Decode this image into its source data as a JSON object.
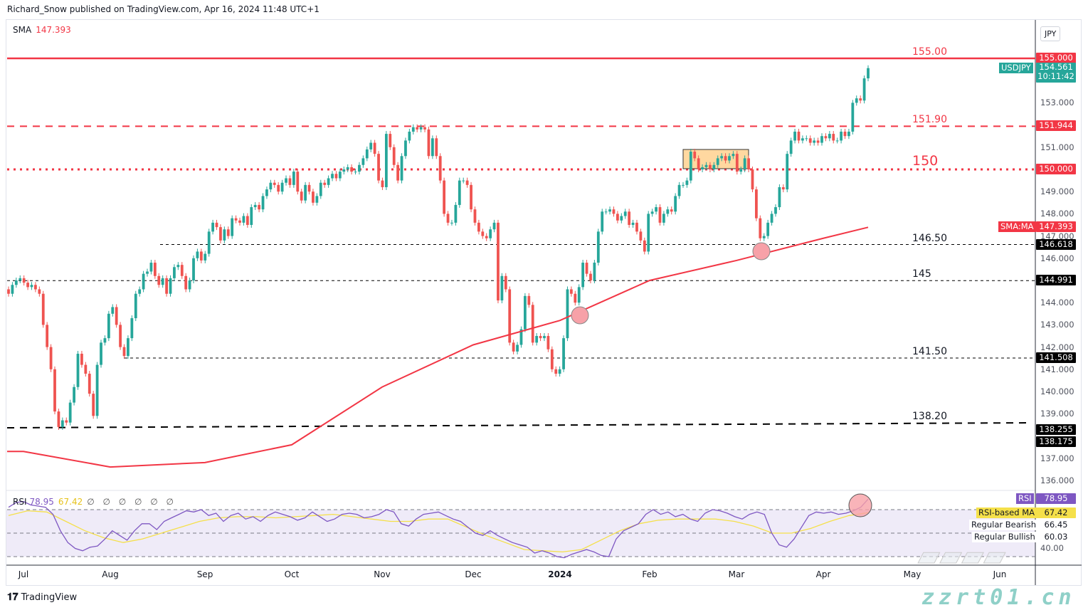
{
  "header": {
    "attribution": "Richard_Snow published on TradingView.com, Apr 16, 2024 11:48 UTC+1"
  },
  "legend": {
    "label": "SMA",
    "value": "147.393"
  },
  "currency": "JPY",
  "symbol": "USDJPY",
  "last_price": "154.561",
  "countdown": "10:11:42",
  "colors": {
    "up": "#26a69a",
    "down": "#ef5350",
    "sma": "#f23645",
    "rsi": "#7e57c2",
    "rsi_ma": "#f5e04a",
    "level": "#f23645"
  },
  "price_ticks": [
    "153.000",
    "151.000",
    "149.000",
    "148.000",
    "147.000",
    "146.000",
    "144.000",
    "143.000",
    "142.000",
    "141.000",
    "140.000",
    "139.000",
    "137.000",
    "136.000"
  ],
  "badges": [
    {
      "text": "155.000",
      "price": 155.0,
      "color": "#f23645"
    },
    {
      "text": "151.944",
      "price": 151.944,
      "color": "#f23645"
    },
    {
      "text": "150.000",
      "price": 150.0,
      "color": "#f23645"
    },
    {
      "text": "147.393",
      "price": 147.393,
      "color": "#f23645",
      "tag": "SMA:MA"
    },
    {
      "text": "146.618",
      "price": 146.618,
      "color": "#000000"
    },
    {
      "text": "144.991",
      "price": 144.991,
      "color": "#000000"
    },
    {
      "text": "141.508",
      "price": 141.508,
      "color": "#000000"
    },
    {
      "text": "138.255",
      "price": 138.255,
      "color": "#000000"
    },
    {
      "text": "138.175",
      "price": 138.175,
      "color": "#000000"
    }
  ],
  "levels": [
    {
      "label": "155.00",
      "price": 155.0,
      "style": "solid",
      "color": "#f23645"
    },
    {
      "label": "151.90",
      "price": 151.944,
      "style": "dashed",
      "color": "#f23645"
    },
    {
      "label": "150",
      "price": 150.0,
      "style": "dotted",
      "color": "#f23645"
    },
    {
      "label": "146.50",
      "price": 146.618,
      "style": "thin-dashed",
      "color": "#000000"
    },
    {
      "label": "145",
      "price": 144.991,
      "style": "thin-dashed",
      "color": "#000000"
    },
    {
      "label": "141.50",
      "price": 141.508,
      "style": "thin-dashed",
      "color": "#000000"
    },
    {
      "label": "138.20",
      "price": 138.2,
      "style": "dashed-trend",
      "color": "#000000"
    }
  ],
  "time_labels": [
    "Jul",
    "Aug",
    "Sep",
    "Oct",
    "Nov",
    "Dec",
    "2024",
    "Feb",
    "Mar",
    "Apr",
    "May",
    "Jun"
  ],
  "rsi": {
    "label": "RSI",
    "value": "78.95",
    "ma_value": "67.42",
    "placeholders": "∅ ∅ ∅ ∅ ∅ ∅",
    "axis": [
      {
        "label": "RSI",
        "value": "78.95"
      },
      {
        "label": "RSI-based MA",
        "value": "67.42"
      },
      {
        "label": "Regular Bearish",
        "value": "66.45"
      },
      {
        "label": "Regular Bullish",
        "value": "60.03"
      }
    ],
    "axis_tick": "40.00",
    "bands": [
      70,
      50,
      30
    ]
  },
  "watermark": {
    "text": "zzrt01.cn"
  },
  "branding": "TradingView",
  "chart_data": {
    "type": "candlestick",
    "symbol": "USDJPY",
    "timeframe": "daily",
    "x_range": [
      "Jul 2023",
      "Apr 16 2024"
    ],
    "ylim": [
      135.5,
      156.0
    ],
    "closes": [
      144.4,
      144.8,
      145.0,
      145.1,
      144.9,
      144.7,
      144.8,
      144.6,
      144.4,
      143.0,
      142.0,
      141.0,
      139.1,
      138.4,
      138.7,
      138.6,
      139.5,
      140.2,
      141.7,
      141.2,
      140.8,
      139.9,
      138.9,
      141.2,
      142.2,
      142.4,
      143.5,
      143.8,
      143.0,
      142.0,
      141.6,
      142.4,
      143.3,
      144.4,
      144.6,
      145.3,
      145.4,
      145.8,
      145.2,
      144.8,
      145.1,
      144.4,
      145.1,
      145.6,
      145.7,
      145.2,
      144.6,
      145.0,
      146.0,
      146.3,
      145.9,
      146.2,
      147.2,
      147.6,
      147.4,
      146.8,
      147.3,
      147.0,
      147.8,
      147.7,
      147.6,
      147.9,
      147.5,
      148.3,
      148.4,
      148.2,
      148.8,
      149.1,
      149.4,
      149.3,
      149.0,
      149.4,
      149.6,
      149.3,
      149.9,
      149.0,
      148.6,
      149.3,
      149.0,
      148.5,
      148.8,
      149.4,
      149.3,
      149.6,
      149.8,
      149.6,
      149.9,
      150.0,
      150.1,
      149.9,
      149.9,
      150.2,
      150.5,
      150.9,
      151.2,
      150.7,
      149.5,
      149.2,
      151.6,
      151.0,
      150.2,
      149.5,
      150.6,
      151.3,
      151.7,
      151.9,
      151.8,
      151.9,
      151.8,
      150.6,
      151.4,
      150.6,
      149.5,
      148.0,
      147.6,
      147.6,
      148.4,
      149.5,
      149.5,
      149.3,
      148.2,
      147.6,
      147.2,
      147.0,
      146.9,
      147.3,
      147.6,
      144.1,
      145.2,
      144.6,
      142.2,
      141.8,
      142.1,
      142.8,
      144.3,
      143.9,
      142.2,
      142.5,
      142.4,
      142.5,
      141.9,
      141.0,
      140.8,
      141.0,
      142.4,
      144.6,
      144.4,
      144.0,
      144.7,
      145.8,
      145.3,
      145.0,
      145.8,
      147.2,
      148.1,
      148.1,
      148.2,
      148.0,
      147.7,
      147.9,
      148.1,
      147.5,
      147.6,
      147.2,
      146.8,
      146.3,
      148.0,
      148.1,
      148.3,
      147.6,
      148.0,
      148.2,
      148.1,
      148.8,
      149.3,
      149.3,
      149.5,
      150.8,
      150.5,
      150.0,
      150.1,
      150.2,
      150.0,
      150.2,
      150.5,
      150.6,
      150.4,
      150.6,
      150.7,
      149.9,
      150.0,
      150.5,
      150.0,
      149.1,
      147.8,
      146.9,
      147.0,
      147.6,
      148.0,
      148.3,
      149.2,
      149.1,
      150.7,
      151.3,
      151.7,
      151.3,
      151.4,
      151.4,
      151.2,
      151.3,
      151.2,
      151.5,
      151.4,
      151.6,
      151.3,
      151.3,
      151.7,
      151.5,
      151.7,
      153.0,
      153.2,
      153.1,
      154.1,
      154.561
    ],
    "sma": {
      "name": "SMA",
      "points": [
        {
          "at": "Jul",
          "value": 137.3
        },
        {
          "at": "Aug",
          "value": 136.6
        },
        {
          "at": "Sep",
          "value": 136.8
        },
        {
          "at": "Oct",
          "value": 137.6
        },
        {
          "at": "Nov",
          "value": 140.2
        },
        {
          "at": "Dec",
          "value": 142.1
        },
        {
          "at": "2024",
          "value": 143.2
        },
        {
          "at": "Feb",
          "value": 145.0
        },
        {
          "at": "Mar",
          "value": 145.9
        },
        {
          "at": "Apr",
          "value": 146.9
        },
        {
          "at": "Apr 16",
          "value": 147.393
        }
      ]
    },
    "rsi_values": [
      72,
      76,
      77,
      74,
      73,
      72,
      66,
      52,
      42,
      37,
      35,
      38,
      39,
      45,
      52,
      48,
      44,
      52,
      58,
      58,
      53,
      60,
      63,
      66,
      69,
      68,
      70,
      65,
      67,
      60,
      65,
      67,
      62,
      64,
      60,
      65,
      68,
      66,
      64,
      61,
      63,
      68,
      64,
      60,
      62,
      66,
      67,
      66,
      63,
      64,
      66,
      70,
      68,
      58,
      56,
      62,
      66,
      67,
      68,
      65,
      62,
      60,
      55,
      50,
      48,
      52,
      48,
      45,
      42,
      40,
      38,
      33,
      35,
      33,
      30,
      29,
      32,
      34,
      36,
      34,
      31,
      30,
      45,
      52,
      55,
      58,
      66,
      70,
      66,
      68,
      64,
      66,
      62,
      60,
      67,
      70,
      69,
      67,
      64,
      62,
      66,
      68,
      66,
      50,
      40,
      38,
      45,
      55,
      65,
      68,
      67,
      68,
      66,
      67,
      69,
      72,
      78.95
    ],
    "rsi_ma_values": [
      65,
      69,
      68,
      60,
      52,
      46,
      42,
      45,
      50,
      55,
      60,
      63,
      64,
      64,
      63,
      64,
      65,
      66,
      64,
      62,
      60,
      60,
      62,
      62,
      55,
      48,
      42,
      36,
      35,
      34,
      36,
      44,
      52,
      58,
      61,
      62,
      62,
      62,
      60,
      56,
      50,
      50,
      54,
      60,
      65,
      67.42
    ],
    "annotations": {
      "highlight_box": {
        "from_price": 150.0,
        "to_price": 150.9,
        "period": "Feb–Mar"
      },
      "circles": [
        {
          "at": "early Jan",
          "price": 143.3
        },
        {
          "at": "early Mar",
          "price": 146.3
        },
        {
          "pane": "RSI",
          "at": "Apr",
          "value": 70
        }
      ]
    }
  }
}
